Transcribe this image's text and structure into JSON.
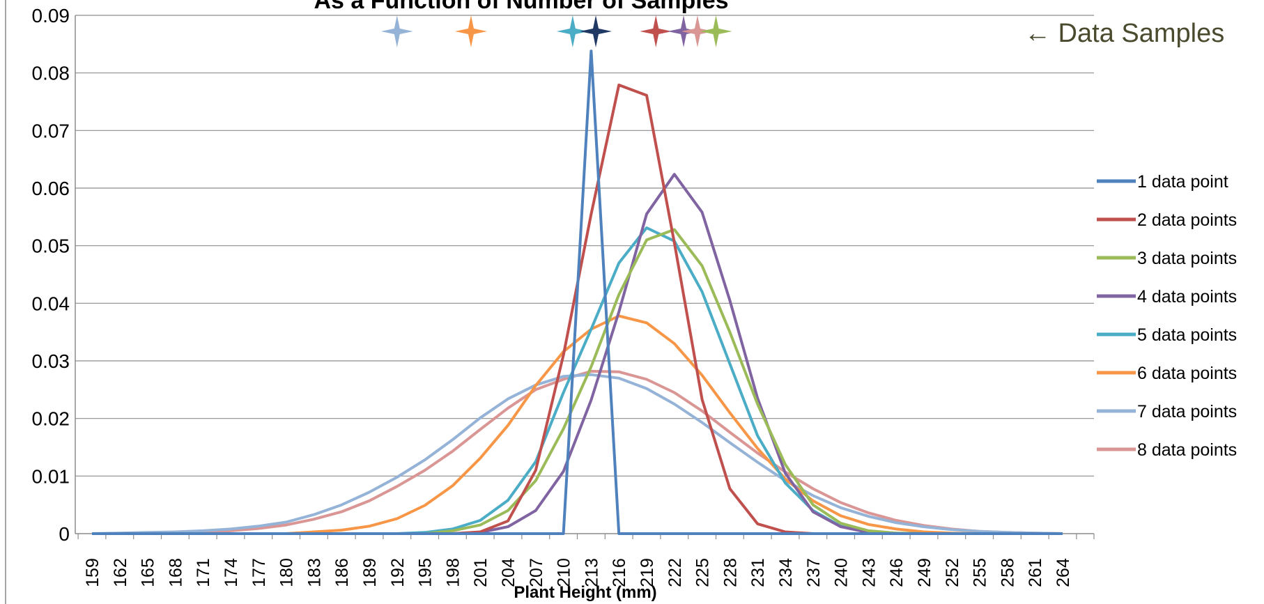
{
  "chart_data": {
    "type": "line",
    "title": "As a Function of Number of Samples",
    "xlabel": "Plant Height (mm)",
    "ylabel": "",
    "ylim": [
      0,
      0.09
    ],
    "yticks": [
      "0",
      "0.01",
      "0.02",
      "0.03",
      "0.04",
      "0.05",
      "0.06",
      "0.07",
      "0.08",
      "0.09"
    ],
    "grid": "horizontal",
    "legend_position": "right",
    "categories": [
      159,
      162,
      165,
      168,
      171,
      174,
      177,
      180,
      183,
      186,
      189,
      192,
      195,
      198,
      201,
      204,
      207,
      210,
      213,
      216,
      219,
      222,
      225,
      228,
      231,
      234,
      237,
      240,
      243,
      246,
      249,
      252,
      255,
      258,
      261,
      264
    ],
    "series": [
      {
        "name": "1 data point",
        "color": "#4F81BD",
        "values": [
          0,
          0,
          0,
          0,
          0,
          0,
          0,
          0,
          0,
          0,
          0,
          0,
          0,
          0,
          0,
          0,
          0,
          0,
          0.0838,
          0,
          0,
          0,
          0,
          0,
          0,
          0,
          0,
          0,
          0,
          0,
          0,
          0,
          0,
          0,
          0,
          0
        ]
      },
      {
        "name": "2 data points",
        "color": "#C0504D",
        "values": [
          0,
          0,
          0,
          0,
          0,
          0,
          0,
          0,
          0,
          0,
          0,
          0,
          0,
          0,
          0.0003,
          0.0022,
          0.011,
          0.031,
          0.0555,
          0.0779,
          0.0761,
          0.0505,
          0.0233,
          0.0078,
          0.0017,
          0.0003,
          0,
          0,
          0,
          0,
          0,
          0,
          0,
          0,
          0,
          0
        ]
      },
      {
        "name": "3 data points",
        "color": "#9BBB59",
        "values": [
          0,
          0,
          0,
          0,
          0,
          0,
          0,
          0,
          0,
          0,
          0,
          0,
          0,
          0.0005,
          0.0015,
          0.004,
          0.0092,
          0.0182,
          0.029,
          0.0415,
          0.051,
          0.0528,
          0.0465,
          0.035,
          0.0225,
          0.012,
          0.005,
          0.0018,
          0.0005,
          0.0001,
          0,
          0,
          0,
          0,
          0,
          0
        ]
      },
      {
        "name": "4 data points",
        "color": "#8064A2",
        "values": [
          0,
          0,
          0,
          0,
          0,
          0,
          0,
          0,
          0,
          0,
          0,
          0,
          0,
          0,
          0.0002,
          0.0012,
          0.004,
          0.0108,
          0.0232,
          0.0385,
          0.0555,
          0.0624,
          0.0558,
          0.0405,
          0.0235,
          0.0105,
          0.0038,
          0.0012,
          0.0002,
          0,
          0,
          0,
          0,
          0,
          0,
          0
        ]
      },
      {
        "name": "5 data points",
        "color": "#4BACC6",
        "values": [
          0,
          0,
          0,
          0,
          0,
          0,
          0,
          0,
          0,
          0,
          0,
          0,
          0.0002,
          0.0008,
          0.0023,
          0.0058,
          0.0125,
          0.0245,
          0.0355,
          0.047,
          0.0531,
          0.0508,
          0.042,
          0.0295,
          0.017,
          0.0088,
          0.004,
          0.0013,
          0.0004,
          0.0001,
          0,
          0,
          0,
          0,
          0,
          0
        ]
      },
      {
        "name": "6 data points",
        "color": "#F79646",
        "values": [
          0,
          0,
          0,
          0,
          0,
          0,
          0,
          0,
          0.0003,
          0.0006,
          0.0013,
          0.0026,
          0.0049,
          0.0083,
          0.0131,
          0.0188,
          0.0257,
          0.0316,
          0.0355,
          0.0378,
          0.0366,
          0.033,
          0.0275,
          0.021,
          0.0148,
          0.0095,
          0.0057,
          0.0031,
          0.0016,
          0.0008,
          0.0003,
          0.0001,
          0,
          0,
          0,
          0
        ]
      },
      {
        "name": "7 data points",
        "color": "#95B3D7",
        "values": [
          0,
          0.0001,
          0.0002,
          0.0003,
          0.0005,
          0.0008,
          0.0013,
          0.002,
          0.0033,
          0.005,
          0.0072,
          0.0098,
          0.0128,
          0.0163,
          0.0201,
          0.0234,
          0.0258,
          0.0273,
          0.0276,
          0.027,
          0.0252,
          0.0225,
          0.0193,
          0.0158,
          0.0124,
          0.0092,
          0.0066,
          0.0045,
          0.003,
          0.0019,
          0.0012,
          0.0007,
          0.0004,
          0.0002,
          0.0001,
          0
        ]
      },
      {
        "name": "8 data points",
        "color": "#D99694",
        "values": [
          0,
          0,
          0.0001,
          0.0002,
          0.0003,
          0.0005,
          0.0009,
          0.0015,
          0.0025,
          0.0038,
          0.0057,
          0.0082,
          0.011,
          0.0143,
          0.0181,
          0.0218,
          0.025,
          0.0268,
          0.0282,
          0.0281,
          0.0268,
          0.0245,
          0.0213,
          0.0176,
          0.014,
          0.0107,
          0.0078,
          0.0054,
          0.0036,
          0.0023,
          0.0014,
          0.0008,
          0.0004,
          0.0002,
          0.0001,
          0
        ]
      }
    ],
    "data_samples": [
      {
        "x": 192,
        "color": "#95B3D7"
      },
      {
        "x": 200,
        "color": "#F79646"
      },
      {
        "x": 211,
        "color": "#4BACC6"
      },
      {
        "x": 213.5,
        "color": "#1F3864"
      },
      {
        "x": 220,
        "color": "#C0504D"
      },
      {
        "x": 223,
        "color": "#8064A2"
      },
      {
        "x": 224.5,
        "color": "#D99694"
      },
      {
        "x": 226.5,
        "color": "#9BBB59"
      }
    ],
    "annotation": "← Data Samples"
  }
}
